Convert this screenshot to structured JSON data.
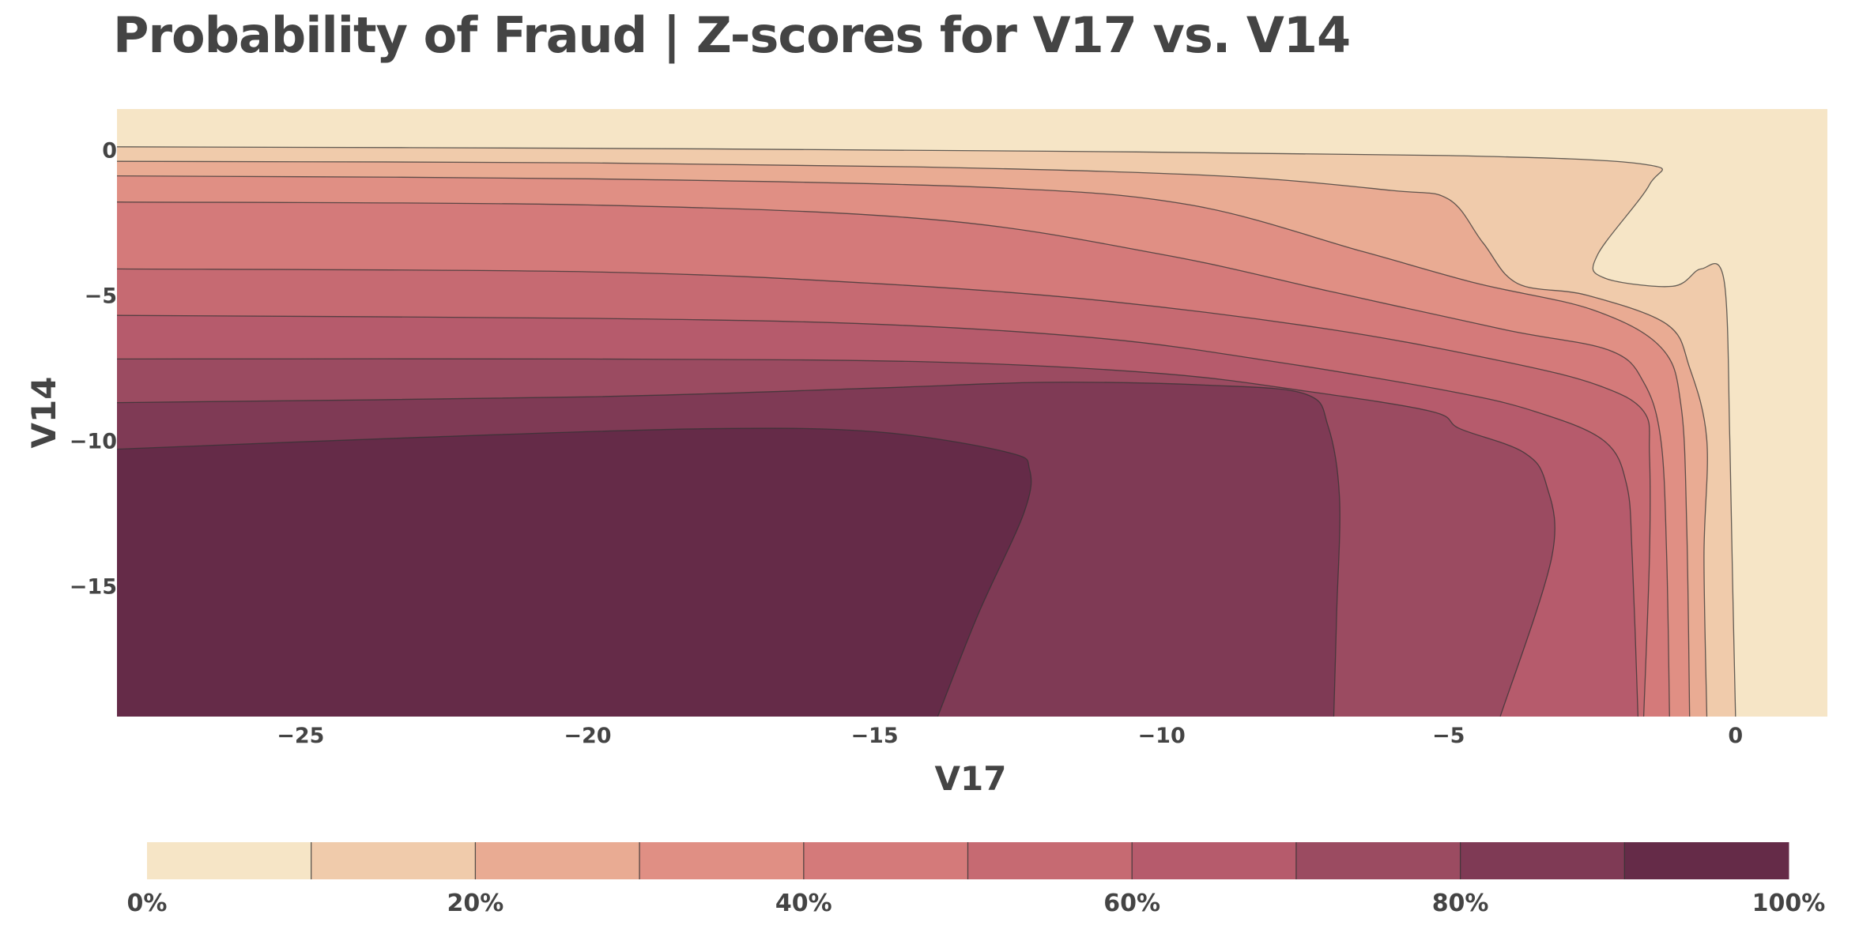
{
  "chart_data": {
    "type": "contour",
    "title": "Probability of Fraud | Z-scores for V17 vs. V14",
    "xlabel": "V17",
    "ylabel": "V14",
    "xlim": [
      -28.2,
      1.6
    ],
    "ylim": [
      -19.5,
      1.4
    ],
    "xticks": [
      -25,
      -20,
      -15,
      -10,
      -5,
      0
    ],
    "yticks": [
      0,
      -5,
      -10,
      -15
    ],
    "colorscale": [
      "#f6e5c6",
      "#f0cbab",
      "#e9ab93",
      "#e08f84",
      "#d47a7a",
      "#c66a72",
      "#b65b6c",
      "#9b4b61",
      "#7f3a55",
      "#652b48"
    ],
    "colorbar": {
      "range": [
        0,
        100
      ],
      "tick_values": [
        0,
        20,
        40,
        60,
        80,
        100
      ],
      "tick_labels": [
        "0%",
        "20%",
        "40%",
        "60%",
        "80%",
        "100%"
      ],
      "placement": "bottom"
    },
    "contour_levels": [
      10,
      20,
      30,
      40,
      50,
      60,
      70,
      80,
      90
    ],
    "contour_lines": [
      {
        "level": 10,
        "points": [
          [
            -28.2,
            0.1
          ],
          [
            -20,
            0.05
          ],
          [
            -12,
            -0.05
          ],
          [
            -5,
            -0.2
          ],
          [
            -1.6,
            -0.5
          ],
          [
            -1.5,
            -1.2
          ],
          [
            -2.4,
            -3.6
          ],
          [
            -2.3,
            -4.4
          ],
          [
            -1.1,
            -4.7
          ],
          [
            -0.6,
            -4.1
          ],
          [
            -0.2,
            -4.5
          ],
          [
            -0.1,
            -10
          ],
          [
            -0.05,
            -15
          ],
          [
            0.0,
            -19.5
          ]
        ]
      },
      {
        "level": 20,
        "points": [
          [
            -28.2,
            -0.4
          ],
          [
            -20,
            -0.45
          ],
          [
            -14,
            -0.6
          ],
          [
            -9,
            -0.9
          ],
          [
            -6,
            -1.4
          ],
          [
            -5,
            -1.7
          ],
          [
            -4.4,
            -3.2
          ],
          [
            -3.8,
            -4.6
          ],
          [
            -2.6,
            -5.0
          ],
          [
            -1.2,
            -6.0
          ],
          [
            -0.8,
            -7.5
          ],
          [
            -0.5,
            -10
          ],
          [
            -0.55,
            -14
          ],
          [
            -0.5,
            -19.5
          ]
        ]
      },
      {
        "level": 30,
        "points": [
          [
            -28.2,
            -0.9
          ],
          [
            -20,
            -1.0
          ],
          [
            -13,
            -1.3
          ],
          [
            -9.5,
            -1.9
          ],
          [
            -6.5,
            -3.5
          ],
          [
            -4.5,
            -4.6
          ],
          [
            -2.5,
            -5.5
          ],
          [
            -1.3,
            -6.8
          ],
          [
            -0.95,
            -8.8
          ],
          [
            -0.85,
            -13
          ],
          [
            -0.8,
            -19.5
          ]
        ]
      },
      {
        "level": 40,
        "points": [
          [
            -28.2,
            -1.8
          ],
          [
            -20,
            -1.9
          ],
          [
            -14,
            -2.4
          ],
          [
            -10,
            -3.6
          ],
          [
            -7,
            -4.9
          ],
          [
            -4,
            -6.2
          ],
          [
            -2.2,
            -6.9
          ],
          [
            -1.6,
            -8.0
          ],
          [
            -1.3,
            -10
          ],
          [
            -1.2,
            -14
          ],
          [
            -1.15,
            -19.5
          ]
        ]
      },
      {
        "level": 50,
        "points": [
          [
            -28.2,
            -4.1
          ],
          [
            -20,
            -4.2
          ],
          [
            -15,
            -4.6
          ],
          [
            -11,
            -5.2
          ],
          [
            -7,
            -6.2
          ],
          [
            -4,
            -7.3
          ],
          [
            -2.4,
            -8.1
          ],
          [
            -1.6,
            -9.0
          ],
          [
            -1.5,
            -10.5
          ],
          [
            -1.5,
            -14
          ],
          [
            -1.6,
            -19.5
          ]
        ]
      },
      {
        "level": 60,
        "points": [
          [
            -28.2,
            -5.7
          ],
          [
            -20,
            -5.8
          ],
          [
            -15,
            -6.0
          ],
          [
            -11,
            -6.5
          ],
          [
            -8,
            -7.3
          ],
          [
            -5,
            -8.3
          ],
          [
            -3.5,
            -9.0
          ],
          [
            -2.3,
            -10.0
          ],
          [
            -1.9,
            -11.5
          ],
          [
            -1.8,
            -14
          ],
          [
            -1.7,
            -19.5
          ]
        ]
      },
      {
        "level": 70,
        "points": [
          [
            -28.2,
            -7.2
          ],
          [
            -20,
            -7.2
          ],
          [
            -14,
            -7.3
          ],
          [
            -10,
            -7.7
          ],
          [
            -7.5,
            -8.3
          ],
          [
            -5.3,
            -9.0
          ],
          [
            -4.8,
            -9.6
          ],
          [
            -3.7,
            -10.4
          ],
          [
            -3.3,
            -11.5
          ],
          [
            -3.2,
            -14
          ],
          [
            -4.1,
            -19.5
          ]
        ]
      },
      {
        "level": 80,
        "points": [
          [
            -28.2,
            -8.7
          ],
          [
            -20,
            -8.5
          ],
          [
            -15,
            -8.2
          ],
          [
            -12,
            -8.0
          ],
          [
            -9.2,
            -8.1
          ],
          [
            -7.5,
            -8.4
          ],
          [
            -7.1,
            -9.5
          ],
          [
            -6.9,
            -12
          ],
          [
            -6.95,
            -16
          ],
          [
            -7.0,
            -19.5
          ]
        ]
      },
      {
        "level": 90,
        "points": [
          [
            -28.2,
            -10.3
          ],
          [
            -23,
            -9.9
          ],
          [
            -18,
            -9.6
          ],
          [
            -15,
            -9.7
          ],
          [
            -12.7,
            -10.4
          ],
          [
            -12.3,
            -11.0
          ],
          [
            -12.4,
            -12.5
          ],
          [
            -13.2,
            -16
          ],
          [
            -13.9,
            -19.5
          ]
        ]
      }
    ]
  }
}
